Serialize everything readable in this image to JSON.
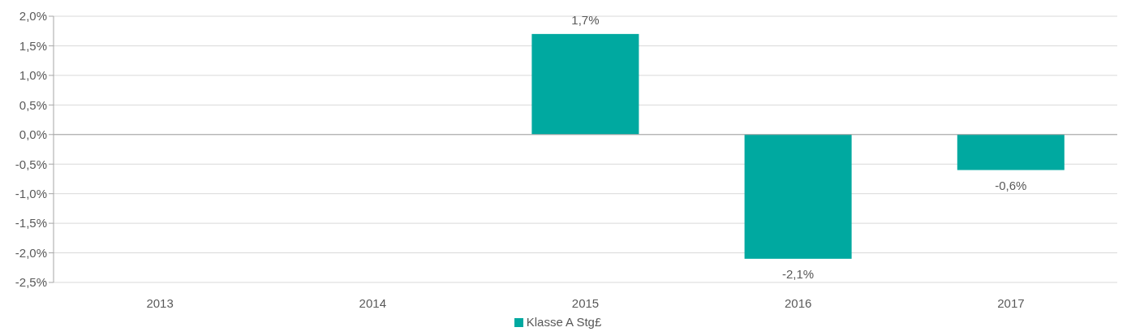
{
  "chart_data": {
    "type": "bar",
    "categories": [
      "2013",
      "2014",
      "2015",
      "2016",
      "2017"
    ],
    "series": [
      {
        "name": "Klasse A Stg£",
        "color": "#00a9a0",
        "values": [
          null,
          null,
          1.7,
          -2.1,
          -0.6
        ],
        "value_labels": [
          null,
          null,
          "1,7%",
          "-2,1%",
          "-0,6%"
        ]
      }
    ],
    "ylim": [
      -2.5,
      2.0
    ],
    "yticks": [
      {
        "value": -2.5,
        "label": "-2,5%"
      },
      {
        "value": -2.0,
        "label": "-2,0%"
      },
      {
        "value": -1.5,
        "label": "-1,5%"
      },
      {
        "value": -1.0,
        "label": "-1,0%"
      },
      {
        "value": -0.5,
        "label": "-0,5%"
      },
      {
        "value": 0.0,
        "label": "0,0%"
      },
      {
        "value": 0.5,
        "label": "0,5%"
      },
      {
        "value": 1.0,
        "label": "1,0%"
      },
      {
        "value": 1.5,
        "label": "1,5%"
      },
      {
        "value": 2.0,
        "label": "2,0%"
      }
    ],
    "grid": "y",
    "legend": "bottom"
  }
}
